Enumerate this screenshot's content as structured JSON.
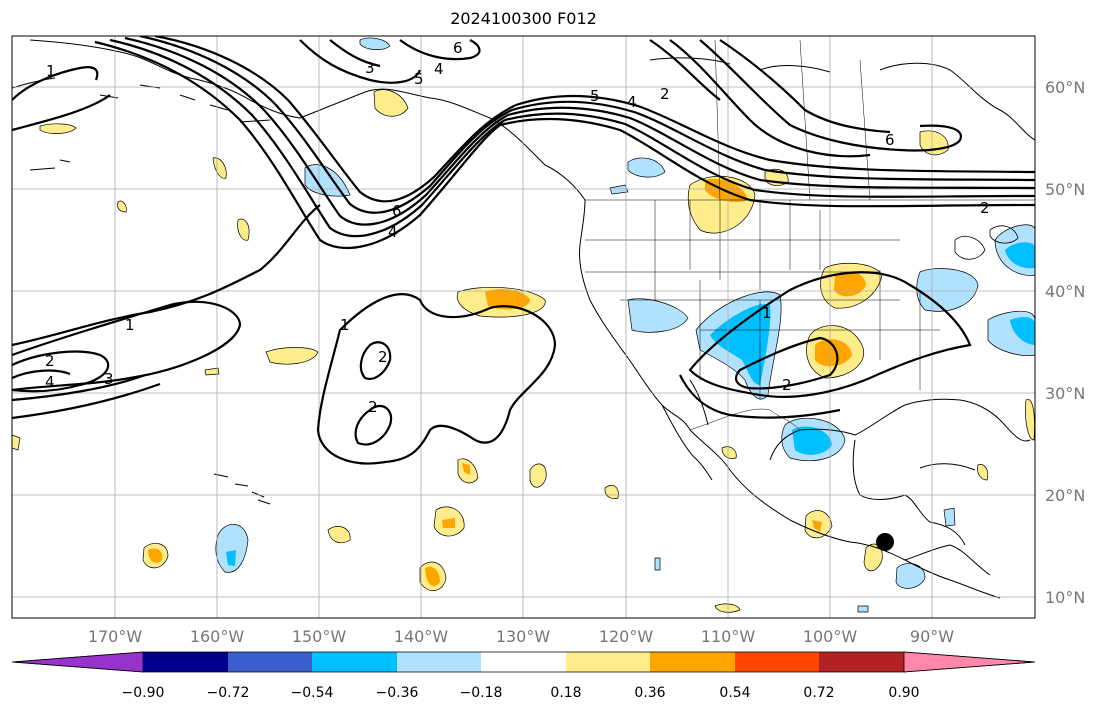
{
  "title": "2024100300 F012",
  "map": {
    "latitudes": [
      {
        "value": 60,
        "label": "60°N"
      },
      {
        "value": 50,
        "label": "50°N"
      },
      {
        "value": 40,
        "label": "40°N"
      },
      {
        "value": 30,
        "label": "30°N"
      },
      {
        "value": 20,
        "label": "20°N"
      },
      {
        "value": 10,
        "label": "10°N"
      }
    ],
    "longitudes": [
      {
        "value": -170,
        "label": "170°W"
      },
      {
        "value": -160,
        "label": "160°W"
      },
      {
        "value": -150,
        "label": "150°W"
      },
      {
        "value": -140,
        "label": "140°W"
      },
      {
        "value": -130,
        "label": "130°W"
      },
      {
        "value": -120,
        "label": "120°W"
      },
      {
        "value": -110,
        "label": "110°W"
      },
      {
        "value": -100,
        "label": "100°W"
      },
      {
        "value": -90,
        "label": "90°W"
      }
    ],
    "contour_labels": [
      "1",
      "2",
      "3",
      "4",
      "5",
      "6"
    ],
    "marker": {
      "lon": -94,
      "lat": 15.5
    }
  },
  "colorbar": {
    "ticks": [
      "−0.90",
      "−0.72",
      "−0.54",
      "−0.36",
      "−0.18",
      "0.18",
      "0.36",
      "0.54",
      "0.72",
      "0.90"
    ],
    "colors": [
      "#9932CC",
      "#00008B",
      "#3A5FCD",
      "#00BFFF",
      "#B0E2FF",
      "#FFFFFF",
      "#FFEC8B",
      "#FFA500",
      "#FF4500",
      "#B22222",
      "#FF88AA"
    ]
  }
}
